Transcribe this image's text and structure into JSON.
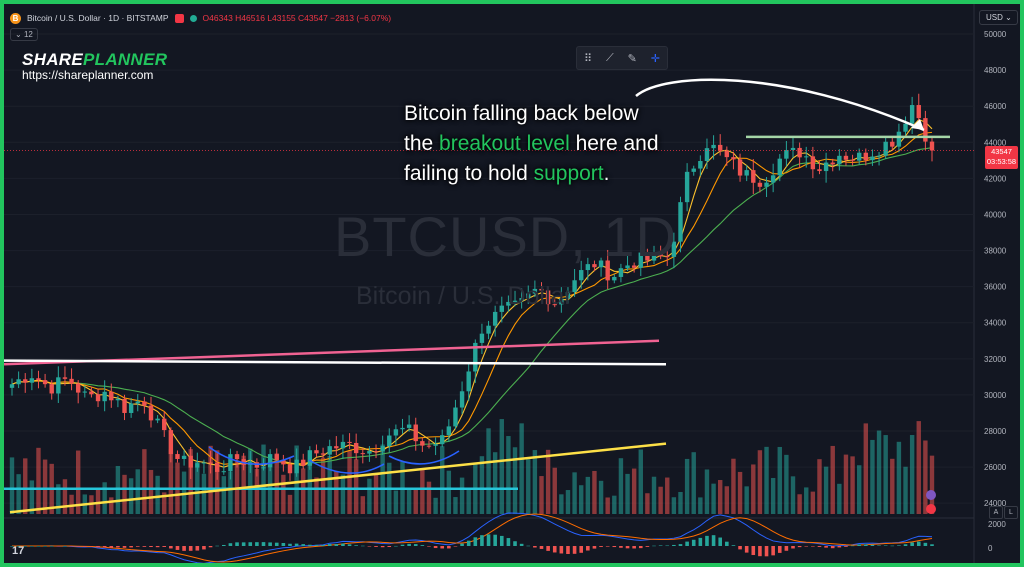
{
  "header": {
    "coin_icon": "B",
    "symbol": "Bitcoin / U.S. Dollar · 1D · BITSTAMP",
    "ohlc": "O46343 H46516 L43155 C43547 −2813 (−6.07%)",
    "interval_version": "12"
  },
  "brand": {
    "name_part1": "SHARE",
    "name_part2": "PLANNER",
    "url": "https://shareplanner.com"
  },
  "currency": "USD",
  "watermark": {
    "ticker": "BTCUSD, 1D",
    "name": "Bitcoin / U.S. Dollar"
  },
  "annotation": {
    "line1": "Bitcoin falling back below",
    "line2_a": "the ",
    "line2_b": "breakout level",
    "line2_c": " here and",
    "line3_a": "failing to hold ",
    "line3_b": "support",
    "line3_c": "."
  },
  "price_tag": {
    "price": "43547",
    "countdown": "03:53:58"
  },
  "osc_axis": {
    "upper": "2000",
    "zero": "0"
  },
  "tv_logo": "17",
  "buttons": {
    "auto": "A",
    "log": "L"
  },
  "colors": {
    "up": "#26a69a",
    "down": "#ef5350",
    "accent_green": "#22c55e",
    "resistance": "#f06292",
    "trend": "#fde047",
    "support": "#26c6da",
    "ma_fast": "#fbc02d",
    "ma_mid": "#ff9800",
    "ma_slow": "#4caf50"
  },
  "chart_data": {
    "type": "candlestick",
    "y_axis": {
      "ticks": [
        24000,
        26000,
        28000,
        30000,
        32000,
        34000,
        36000,
        38000,
        40000,
        42000,
        44000,
        46000,
        48000,
        50000
      ],
      "ylim": [
        23400,
        51000
      ]
    },
    "price_path": [
      30600,
      31200,
      30400,
      30900,
      29800,
      30200,
      29300,
      29800,
      27800,
      26200,
      26300,
      25900,
      26500,
      26100,
      26600,
      25900,
      26700,
      27100,
      27200,
      26900,
      27800,
      28100,
      27100,
      27500,
      30500,
      33700,
      34600,
      34900,
      35900,
      35100,
      36500,
      37300,
      36600,
      37400,
      37500,
      37700,
      42200,
      44000,
      43100,
      42200,
      41900,
      43200,
      43500,
      42600,
      43400,
      43100,
      43600,
      44200,
      46200,
      43547
    ],
    "levels": [
      {
        "name": "breakout level",
        "value": 44300
      },
      {
        "name": "resistance (pink)",
        "from": 31700,
        "to": 33000
      },
      {
        "name": "resistance (white)",
        "from": 31900,
        "to": 31700
      },
      {
        "name": "support (cyan)",
        "value": 24800
      },
      {
        "name": "trendline (yellow)",
        "from": 23500,
        "to": 27300
      }
    ],
    "last_close": 43547
  }
}
